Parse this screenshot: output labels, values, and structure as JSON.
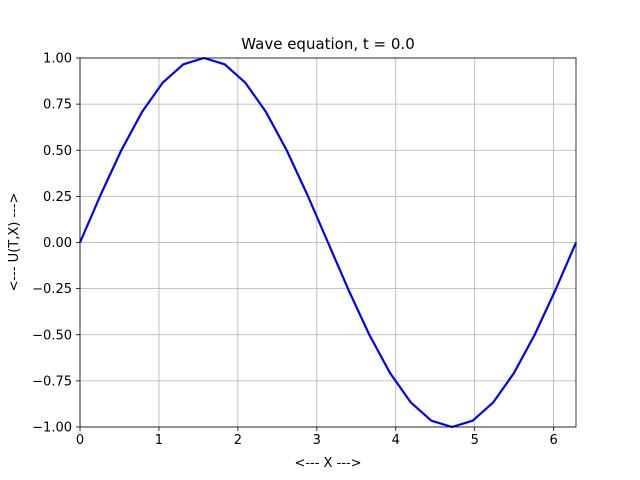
{
  "chart_data": {
    "type": "line",
    "title": "Wave equation, t = 0.0",
    "xlabel": "<--- X --->",
    "ylabel": "<--- U(T,X) --->",
    "xlim": [
      0,
      6.2832
    ],
    "ylim": [
      -1.0,
      1.0
    ],
    "grid": true,
    "x_ticks": [
      0,
      1,
      2,
      3,
      4,
      5,
      6
    ],
    "x_tick_labels": [
      "0",
      "1",
      "2",
      "3",
      "4",
      "5",
      "6"
    ],
    "y_ticks": [
      1.0,
      0.75,
      0.5,
      0.25,
      0.0,
      -0.25,
      -0.5,
      -0.75,
      -1.0
    ],
    "y_tick_labels": [
      "1.00",
      "0.75",
      "0.50",
      "0.25",
      "0.00",
      "−0.25",
      "−0.50",
      "−0.75",
      "−1.00"
    ],
    "series": [
      {
        "color": "#0000ff",
        "x": [
          0.0,
          0.2618,
          0.5236,
          0.7854,
          1.0472,
          1.309,
          1.5708,
          1.8326,
          2.0944,
          2.3562,
          2.618,
          2.8798,
          3.1416,
          3.4034,
          3.6652,
          3.927,
          4.1888,
          4.4506,
          4.7124,
          4.9742,
          5.236,
          5.4978,
          5.7596,
          6.0214,
          6.2832
        ],
        "y": [
          0.0,
          0.2588,
          0.5,
          0.7071,
          0.866,
          0.9659,
          1.0,
          0.9659,
          0.866,
          0.7071,
          0.5,
          0.2588,
          0.0,
          -0.2588,
          -0.5,
          -0.7071,
          -0.866,
          -0.9659,
          -1.0,
          -0.9659,
          -0.866,
          -0.7071,
          -0.5,
          -0.2588,
          0.0
        ]
      }
    ]
  }
}
